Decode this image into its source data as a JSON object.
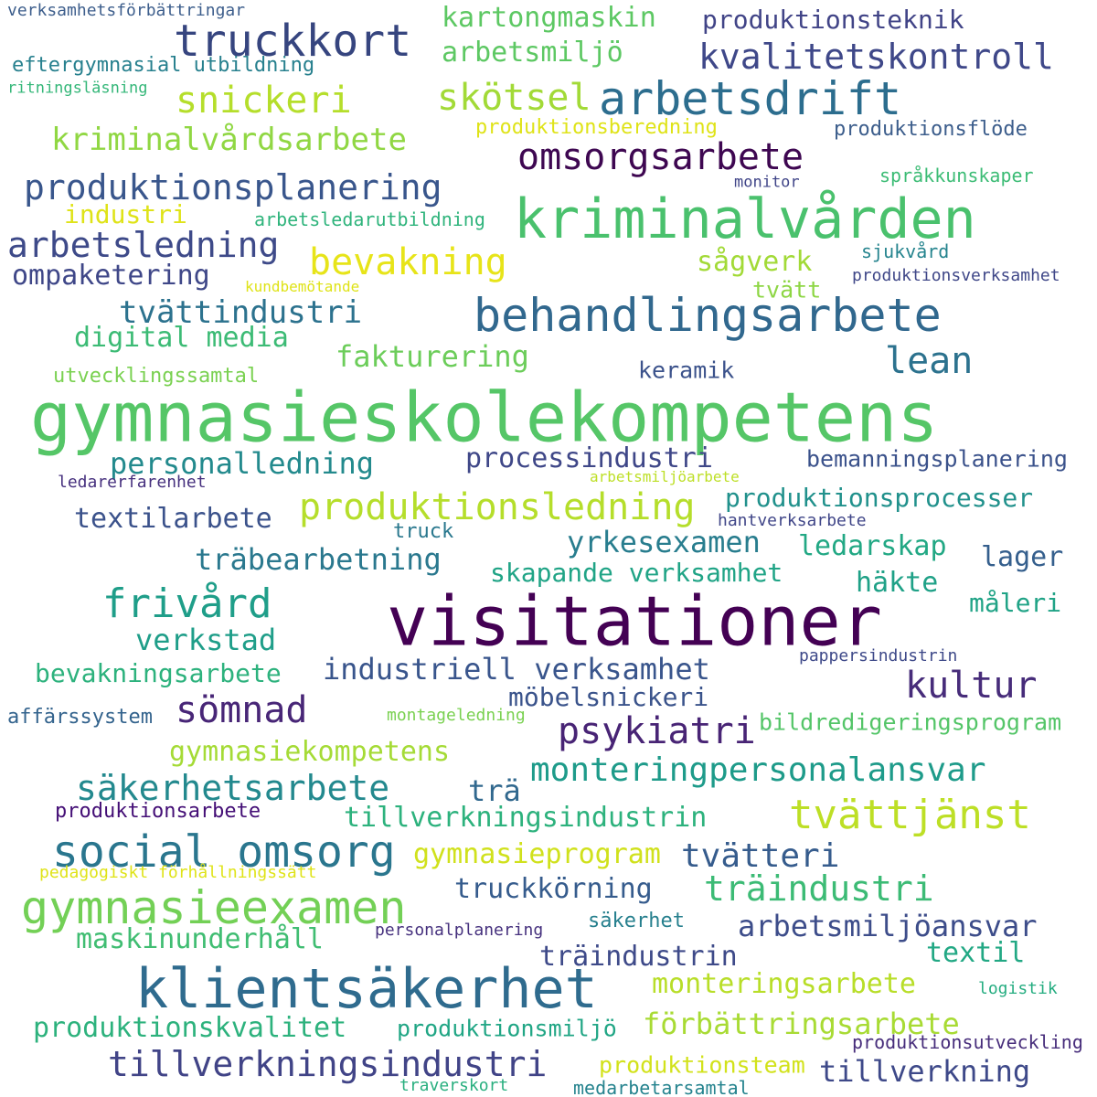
{
  "words": [
    {
      "text": "verksamhetsförbättringar",
      "color": "#3d5e8c"
    },
    {
      "text": "truckkort",
      "color": "#36457f"
    },
    {
      "text": "kartongmaskin",
      "color": "#5dc863"
    },
    {
      "text": "produktionsteknik",
      "color": "#414487"
    },
    {
      "text": "arbetsmiljö",
      "color": "#5dc863"
    },
    {
      "text": "kvalitetskontroll",
      "color": "#3f4889"
    },
    {
      "text": "eftergymnasial utbildning",
      "color": "#27808e"
    },
    {
      "text": "ritningsläsning",
      "color": "#35b779"
    },
    {
      "text": "snickeri",
      "color": "#b5de2b"
    },
    {
      "text": "skötsel",
      "color": "#a2da37"
    },
    {
      "text": "arbetsdrift",
      "color": "#2c6d8e"
    },
    {
      "text": "kriminalvårdsarbete",
      "color": "#90d743"
    },
    {
      "text": "produktionsberedning",
      "color": "#dfe318"
    },
    {
      "text": "produktionsflöde",
      "color": "#3d5e8c"
    },
    {
      "text": "omsorgsarbete",
      "color": "#3e0751"
    },
    {
      "text": "produktionsplanering",
      "color": "#39568c"
    },
    {
      "text": "monitor",
      "color": "#404588"
    },
    {
      "text": "språkkunskaper",
      "color": "#3cbc75"
    },
    {
      "text": "industri",
      "color": "#dfe318"
    },
    {
      "text": "arbetsledarutbildning",
      "color": "#2fb47c"
    },
    {
      "text": "kriminalvården",
      "color": "#4ac16d"
    },
    {
      "text": "arbetsledning",
      "color": "#3e4a89"
    },
    {
      "text": "bevakning",
      "color": "#e7e419"
    },
    {
      "text": "sågverk",
      "color": "#a2da37"
    },
    {
      "text": "sjukvård",
      "color": "#25848e"
    },
    {
      "text": "ompaketering",
      "color": "#3f4788"
    },
    {
      "text": "kundbemötande",
      "color": "#dfe318"
    },
    {
      "text": "tvätt",
      "color": "#8ed645"
    },
    {
      "text": "produktionsverksamhet",
      "color": "#3f4788"
    },
    {
      "text": "tvättindustri",
      "color": "#2c728e"
    },
    {
      "text": "behandlingsarbete",
      "color": "#31688e"
    },
    {
      "text": "digital media",
      "color": "#3cbb75"
    },
    {
      "text": "fakturering",
      "color": "#6ccd5a"
    },
    {
      "text": "lean",
      "color": "#2c728e"
    },
    {
      "text": "utvecklingssamtal",
      "color": "#7ad151"
    },
    {
      "text": "keramik",
      "color": "#3b528b"
    },
    {
      "text": "gymnasieskolekompetens",
      "color": "#55c667"
    },
    {
      "text": "personalledning",
      "color": "#238a8d"
    },
    {
      "text": "processindustri",
      "color": "#3f4788"
    },
    {
      "text": "bemanningsplanering",
      "color": "#3b528b"
    },
    {
      "text": "ledarerfarenhet",
      "color": "#46307e"
    },
    {
      "text": "arbetsmiljöarbete",
      "color": "#bddf26"
    },
    {
      "text": "produktionsledning",
      "color": "#b5de2b"
    },
    {
      "text": "produktionsprocesser",
      "color": "#21918c"
    },
    {
      "text": "textilarbete",
      "color": "#3b528b"
    },
    {
      "text": "truck",
      "color": "#2a788e"
    },
    {
      "text": "hantverksarbete",
      "color": "#404688"
    },
    {
      "text": "yrkesexamen",
      "color": "#287d8e"
    },
    {
      "text": "ledarskap",
      "color": "#22a884"
    },
    {
      "text": "träbearbetning",
      "color": "#2a788e"
    },
    {
      "text": "lager",
      "color": "#355f8d"
    },
    {
      "text": "skapande verksamhet",
      "color": "#20a486"
    },
    {
      "text": "häkte",
      "color": "#1fa187"
    },
    {
      "text": "frivård",
      "color": "#1f9e89"
    },
    {
      "text": "visitationer",
      "color": "#440154"
    },
    {
      "text": "måleri",
      "color": "#20a386"
    },
    {
      "text": "verkstad",
      "color": "#1f9e89"
    },
    {
      "text": "pappersindustrin",
      "color": "#3e4989"
    },
    {
      "text": "industriell verksamhet",
      "color": "#39558c"
    },
    {
      "text": "bevakningsarbete",
      "color": "#2db27d"
    },
    {
      "text": "kultur",
      "color": "#472c7a"
    },
    {
      "text": "möbelsnickeri",
      "color": "#3a538b"
    },
    {
      "text": "sömnad",
      "color": "#482677"
    },
    {
      "text": "affärssystem",
      "color": "#33638d"
    },
    {
      "text": "montageledning",
      "color": "#7ad151"
    },
    {
      "text": "bildredigeringsprogram",
      "color": "#54c568"
    },
    {
      "text": "psykiatri",
      "color": "#482475"
    },
    {
      "text": "gymnasiekompetens",
      "color": "#a5db36"
    },
    {
      "text": "monteringpersonalansvar",
      "color": "#1e9b8a"
    },
    {
      "text": "säkerhetsarbete",
      "color": "#23898e"
    },
    {
      "text": "trä",
      "color": "#31688e"
    },
    {
      "text": "produktionsarbete",
      "color": "#440f76"
    },
    {
      "text": "tillverkningsindustrin",
      "color": "#2db27d"
    },
    {
      "text": "tvättjänst",
      "color": "#bddf26"
    },
    {
      "text": "social omsorg",
      "color": "#2a768e"
    },
    {
      "text": "gymnasieprogram",
      "color": "#d0e11c"
    },
    {
      "text": "tvätteri",
      "color": "#365c8d"
    },
    {
      "text": "pedagogiskt förhållningssätt",
      "color": "#dfe318"
    },
    {
      "text": "gymnasieexamen",
      "color": "#73d056"
    },
    {
      "text": "truckkörning",
      "color": "#365c8d"
    },
    {
      "text": "träindustri",
      "color": "#3cbb75"
    },
    {
      "text": "säkerhet",
      "color": "#27808e"
    },
    {
      "text": "personalplanering",
      "color": "#46317e"
    },
    {
      "text": "arbetsmiljöansvar",
      "color": "#3d4d8a"
    },
    {
      "text": "maskinunderhåll",
      "color": "#40bd72"
    },
    {
      "text": "textil",
      "color": "#22a884"
    },
    {
      "text": "träindustrin",
      "color": "#3e4a89"
    },
    {
      "text": "klientsäkerhet",
      "color": "#2f6b8e"
    },
    {
      "text": "monteringsarbete",
      "color": "#b8de29"
    },
    {
      "text": "logistik",
      "color": "#26ad81"
    },
    {
      "text": "förbättringsarbete",
      "color": "#a8db34"
    },
    {
      "text": "produktionskvalitet",
      "color": "#2db27d"
    },
    {
      "text": "produktionsmiljö",
      "color": "#21a685"
    },
    {
      "text": "produktionsutveckling",
      "color": "#472d7b"
    },
    {
      "text": "tillverkningsindustri",
      "color": "#414487"
    },
    {
      "text": "produktionsteam",
      "color": "#d2e21b"
    },
    {
      "text": "tillverkning",
      "color": "#3e4989"
    },
    {
      "text": "traverskort",
      "color": "#29af7f"
    },
    {
      "text": "medarbetarsamtal",
      "color": "#25838e"
    }
  ]
}
